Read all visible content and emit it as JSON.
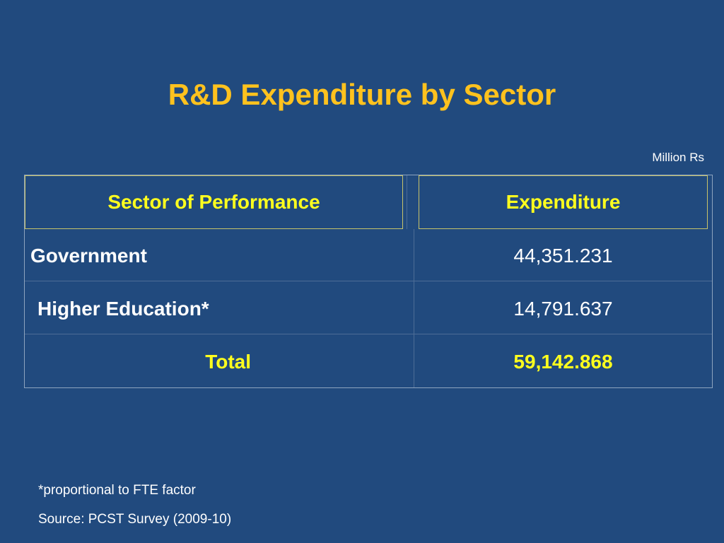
{
  "slide": {
    "title": "R&D Expenditure by Sector",
    "unit": "Million Rs"
  },
  "table": {
    "headers": [
      "Sector of Performance",
      "Expenditure"
    ],
    "rows": [
      {
        "sector": "Government",
        "expenditure": "44,351.231"
      },
      {
        "sector": "Higher Education*",
        "expenditure": "14,791.637"
      },
      {
        "sector": "Total",
        "expenditure": "59,142.868"
      }
    ]
  },
  "footnotes": {
    "note": "*proportional to FTE factor",
    "source": "Source: PCST Survey (2009-10)"
  },
  "colors": {
    "background": "#214a7e",
    "title": "#ffc21e",
    "header_text": "#ffff1e",
    "total_text": "#ffff1e",
    "body_text": "#ffffff"
  }
}
